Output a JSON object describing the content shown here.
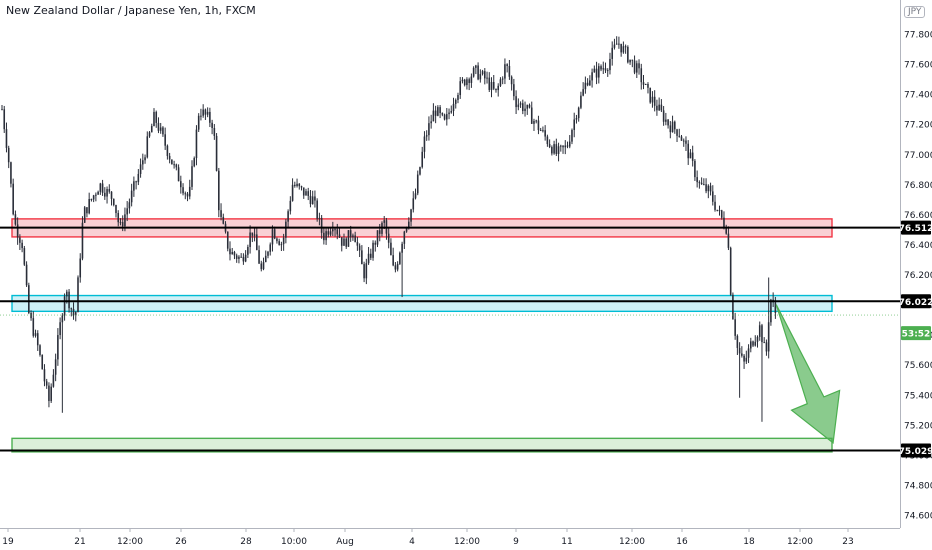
{
  "header": {
    "title": "New Zealand Dollar / Japanese Yen, 1h, FXCM",
    "currency": "JPY"
  },
  "chart_data": {
    "type": "candlestick",
    "symbol": "NZDJPY",
    "timeframe": "1h",
    "x_ticks": [
      "19",
      "21",
      "12:00",
      "26",
      "28",
      "10:00",
      "Aug",
      "4",
      "12:00",
      "9",
      "11",
      "12:00",
      "16",
      "18",
      "12:00",
      "23"
    ],
    "y_ticks": [
      "74.600",
      "74.800",
      "75.000",
      "75.200",
      "75.400",
      "75.600",
      "75.800",
      "76.000",
      "76.200",
      "76.400",
      "76.600",
      "76.800",
      "77.000",
      "77.200",
      "77.400",
      "77.600",
      "77.800"
    ],
    "ylim": [
      74.5,
      77.82
    ],
    "price_path": [
      [
        0,
        77.3
      ],
      [
        0.6,
        77.0
      ],
      [
        1.2,
        76.55
      ],
      [
        2.0,
        76.4
      ],
      [
        2.6,
        75.95
      ],
      [
        3.6,
        75.7
      ],
      [
        4.6,
        75.35
      ],
      [
        5.6,
        75.8
      ],
      [
        6.2,
        76.1
      ],
      [
        7.2,
        75.9
      ],
      [
        8.0,
        76.6
      ],
      [
        9.6,
        76.8
      ],
      [
        11.0,
        76.7
      ],
      [
        11.6,
        76.5
      ],
      [
        13.6,
        76.9
      ],
      [
        15.0,
        77.25
      ],
      [
        17.0,
        76.9
      ],
      [
        18.4,
        76.7
      ],
      [
        19.4,
        77.3
      ],
      [
        20.8,
        77.2
      ],
      [
        21.4,
        76.6
      ],
      [
        22.4,
        76.35
      ],
      [
        23.6,
        76.3
      ],
      [
        24.6,
        76.5
      ],
      [
        25.6,
        76.2
      ],
      [
        26.6,
        76.5
      ],
      [
        27.6,
        76.4
      ],
      [
        28.6,
        76.8
      ],
      [
        29.6,
        76.75
      ],
      [
        30.6,
        76.7
      ],
      [
        31.6,
        76.45
      ],
      [
        32.6,
        76.55
      ],
      [
        33.6,
        76.4
      ],
      [
        34.6,
        76.5
      ],
      [
        35.6,
        76.2
      ],
      [
        36.6,
        76.4
      ],
      [
        37.6,
        76.55
      ],
      [
        38.6,
        76.2
      ],
      [
        39.6,
        76.5
      ],
      [
        40.6,
        76.7
      ],
      [
        41.6,
        77.1
      ],
      [
        42.6,
        77.3
      ],
      [
        43.6,
        77.2
      ],
      [
        44.6,
        77.4
      ],
      [
        45.6,
        77.5
      ],
      [
        46.6,
        77.55
      ],
      [
        47.6,
        77.5
      ],
      [
        48.6,
        77.4
      ],
      [
        49.6,
        77.6
      ],
      [
        50.6,
        77.35
      ],
      [
        51.6,
        77.3
      ],
      [
        52.6,
        77.2
      ],
      [
        53.6,
        77.1
      ],
      [
        54.6,
        77.0
      ],
      [
        55.6,
        77.05
      ],
      [
        56.6,
        77.3
      ],
      [
        57.6,
        77.5
      ],
      [
        58.6,
        77.55
      ],
      [
        59.6,
        77.6
      ],
      [
        60.6,
        77.75
      ],
      [
        61.6,
        77.65
      ],
      [
        62.6,
        77.55
      ],
      [
        63.6,
        77.4
      ],
      [
        64.6,
        77.3
      ],
      [
        65.6,
        77.2
      ],
      [
        66.6,
        77.15
      ],
      [
        67.6,
        77.0
      ],
      [
        68.6,
        76.8
      ],
      [
        69.6,
        76.75
      ],
      [
        70.6,
        76.6
      ],
      [
        71.4,
        76.5
      ],
      [
        71.8,
        76.0
      ],
      [
        72.4,
        75.7
      ],
      [
        73.0,
        75.6
      ],
      [
        73.8,
        75.75
      ],
      [
        74.6,
        75.85
      ],
      [
        75.2,
        75.65
      ],
      [
        75.6,
        76.05
      ],
      [
        76.2,
        75.93
      ]
    ],
    "levels": [
      {
        "name": "resistance",
        "value": 76.512,
        "label": "76.512",
        "zone": [
          76.45,
          76.57
        ],
        "color": "#f23645",
        "fill": "#f8c8cc"
      },
      {
        "name": "support-1",
        "value": 76.022,
        "label": "76.022",
        "zone": [
          75.955,
          76.06
        ],
        "color": "#00bcd4",
        "fill": "#c7eef6"
      },
      {
        "name": "support-2",
        "value": 75.029,
        "label": "75.029",
        "zone": [
          75.02,
          75.11
        ],
        "color": "#4caf50",
        "fill": "#d5ecd2"
      }
    ],
    "last_price": {
      "value": 75.93,
      "label": "53:52",
      "color": "#4caf50"
    },
    "projection": {
      "from": [
        76.2,
        76.0
      ],
      "to": [
        81.8,
        75.08
      ],
      "color": "#4caf50"
    }
  }
}
